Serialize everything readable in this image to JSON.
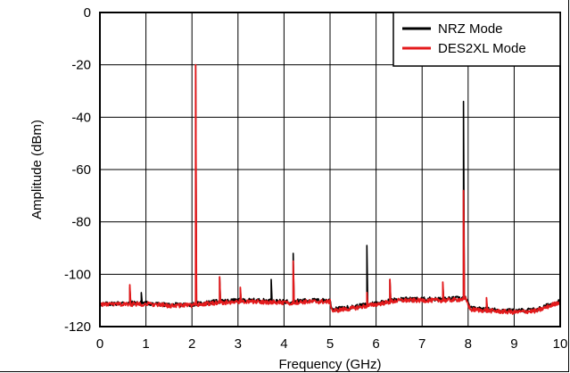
{
  "chart_data": {
    "type": "line",
    "title": "",
    "xlabel": "Frequency (GHz)",
    "ylabel": "Amplitude (dBm)",
    "xlim": [
      0,
      10
    ],
    "ylim": [
      -120,
      0
    ],
    "x_ticks": [
      "0",
      "1",
      "2",
      "3",
      "4",
      "5",
      "6",
      "7",
      "8",
      "9",
      "10"
    ],
    "y_ticks": [
      "0",
      "-20",
      "-40",
      "-60",
      "-80",
      "-100",
      "-120"
    ],
    "grid": true,
    "legend_position": "top-right",
    "series": [
      {
        "name": "NRZ Mode",
        "color": "#000000",
        "noise_floor": [
          [
            0,
            -111.5
          ],
          [
            0.5,
            -111
          ],
          [
            1,
            -111
          ],
          [
            1.5,
            -111.8
          ],
          [
            2,
            -111.5
          ],
          [
            2.5,
            -110.5
          ],
          [
            3,
            -110
          ],
          [
            3.5,
            -110
          ],
          [
            4,
            -110.5
          ],
          [
            4.5,
            -110
          ],
          [
            5,
            -110
          ],
          [
            5.05,
            -113.5
          ],
          [
            5.5,
            -112.5
          ],
          [
            6,
            -111
          ],
          [
            6.5,
            -109.5
          ],
          [
            7,
            -109.5
          ],
          [
            7.5,
            -109.5
          ],
          [
            7.95,
            -109
          ],
          [
            8.05,
            -113
          ],
          [
            8.5,
            -113.5
          ],
          [
            9,
            -114
          ],
          [
            9.5,
            -113.5
          ],
          [
            10,
            -110
          ]
        ],
        "peaks": [
          {
            "x": 0.65,
            "y": -105
          },
          {
            "x": 0.9,
            "y": -107
          },
          {
            "x": 2.08,
            "y": -20
          },
          {
            "x": 2.6,
            "y": -101
          },
          {
            "x": 3.05,
            "y": -106
          },
          {
            "x": 3.72,
            "y": -102
          },
          {
            "x": 4.2,
            "y": -92
          },
          {
            "x": 5.8,
            "y": -89
          },
          {
            "x": 6.3,
            "y": -102
          },
          {
            "x": 7.45,
            "y": -104
          },
          {
            "x": 7.9,
            "y": -34
          },
          {
            "x": 8.4,
            "y": -110
          }
        ]
      },
      {
        "name": "DES2XL Mode",
        "color": "#e41a1c",
        "noise_floor": [
          [
            0,
            -111.5
          ],
          [
            0.5,
            -111.5
          ],
          [
            1,
            -111.3
          ],
          [
            1.5,
            -112
          ],
          [
            2,
            -111.8
          ],
          [
            2.5,
            -111
          ],
          [
            3,
            -110.5
          ],
          [
            3.5,
            -110.5
          ],
          [
            4,
            -111
          ],
          [
            4.5,
            -110.5
          ],
          [
            5,
            -110.5
          ],
          [
            5.05,
            -114
          ],
          [
            5.5,
            -113
          ],
          [
            6,
            -111.5
          ],
          [
            6.5,
            -110
          ],
          [
            7,
            -110
          ],
          [
            7.5,
            -110
          ],
          [
            7.95,
            -109.5
          ],
          [
            8.05,
            -113.5
          ],
          [
            8.5,
            -114
          ],
          [
            9,
            -114.5
          ],
          [
            9.5,
            -114
          ],
          [
            10,
            -110.5
          ]
        ],
        "peaks": [
          {
            "x": 0.65,
            "y": -104
          },
          {
            "x": 2.08,
            "y": -20
          },
          {
            "x": 2.6,
            "y": -101
          },
          {
            "x": 3.05,
            "y": -105
          },
          {
            "x": 4.2,
            "y": -95
          },
          {
            "x": 5.8,
            "y": -107
          },
          {
            "x": 6.3,
            "y": -102
          },
          {
            "x": 7.45,
            "y": -103
          },
          {
            "x": 7.9,
            "y": -68
          },
          {
            "x": 8.4,
            "y": -109
          }
        ]
      }
    ]
  }
}
